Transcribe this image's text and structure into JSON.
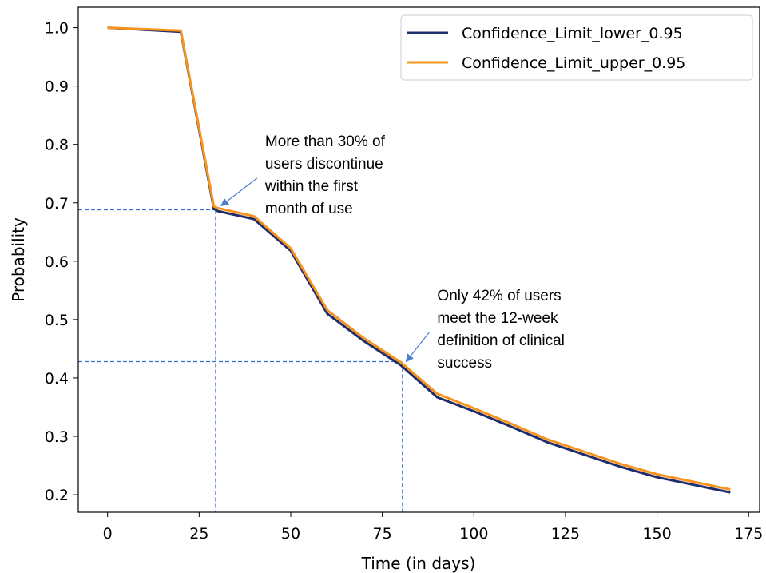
{
  "chart_data": {
    "type": "line",
    "xlabel": "Time (in days)",
    "ylabel": "Probability",
    "xlim": [
      -8,
      178
    ],
    "ylim": [
      0.17,
      1.035
    ],
    "xticks": [
      0,
      25,
      50,
      75,
      100,
      125,
      150,
      175
    ],
    "yticks": [
      0.2,
      0.3,
      0.4,
      0.5,
      0.6,
      0.7,
      0.8,
      0.9,
      1.0
    ],
    "grid": false,
    "legend_position": "top-right",
    "series": [
      {
        "name": "Confidence_Limit_lower_0.95",
        "color": "#1f2d6b",
        "x": [
          0,
          20,
          29,
          30,
          40,
          50,
          60,
          70,
          80,
          90,
          100,
          110,
          120,
          130,
          140,
          150,
          160,
          170
        ],
        "y": [
          1.0,
          0.993,
          0.69,
          0.686,
          0.672,
          0.618,
          0.51,
          0.463,
          0.422,
          0.367,
          0.343,
          0.317,
          0.29,
          0.269,
          0.248,
          0.23,
          0.217,
          0.204
        ]
      },
      {
        "name": "Confidence_Limit_upper_0.95",
        "color": "#f7941d",
        "x": [
          0,
          20,
          29,
          30,
          40,
          50,
          60,
          70,
          80,
          90,
          100,
          110,
          120,
          130,
          140,
          150,
          160,
          170
        ],
        "y": [
          1.0,
          0.995,
          0.694,
          0.691,
          0.677,
          0.622,
          0.516,
          0.468,
          0.427,
          0.373,
          0.348,
          0.322,
          0.295,
          0.274,
          0.253,
          0.235,
          0.222,
          0.209
        ]
      }
    ],
    "reference_lines": [
      {
        "x": 29.5,
        "y": 0.688,
        "color": "#3a6fcf"
      },
      {
        "x": 80.5,
        "y": 0.428,
        "color": "#3a6fcf"
      }
    ],
    "annotations": [
      {
        "lines": [
          "More than 30% of",
          "users discontinue",
          "within the first",
          "month of use"
        ],
        "point": [
          31,
          0.695
        ],
        "text_at": [
          43,
          0.797
        ]
      },
      {
        "lines": [
          "Only 42% of users",
          "meet the 12-week",
          "definition of clinical",
          "success"
        ],
        "point": [
          81.5,
          0.428
        ],
        "text_at": [
          90,
          0.533
        ]
      }
    ]
  }
}
